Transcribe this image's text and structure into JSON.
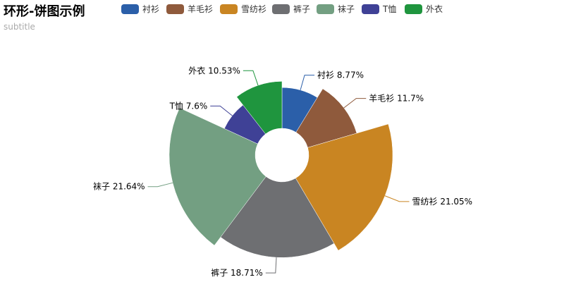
{
  "title": "环形-饼图示例",
  "subtitle": "subtitle",
  "chart_data": {
    "type": "pie",
    "variant": "rose-radius-ring",
    "title": "环形-饼图示例",
    "subtitle": "subtitle",
    "categories": [
      "衬衫",
      "羊毛衫",
      "雪纺衫",
      "裤子",
      "袜子",
      "T恤",
      "外衣"
    ],
    "values": [
      8.77,
      11.7,
      21.05,
      18.71,
      21.64,
      7.6,
      10.53
    ],
    "value_unit": "%",
    "labels": [
      "衬衫 8.77%",
      "羊毛衫 11.7%",
      "雪纺衫 21.05%",
      "裤子 18.71%",
      "袜子 21.64%",
      "T恤 7.6%",
      "外衣 10.53%"
    ],
    "colors": [
      "#2b5fa9",
      "#8f5a3c",
      "#c98522",
      "#6e6f72",
      "#739f82",
      "#3f4196",
      "#1f953e"
    ],
    "legend_position": "top",
    "grid": false
  }
}
